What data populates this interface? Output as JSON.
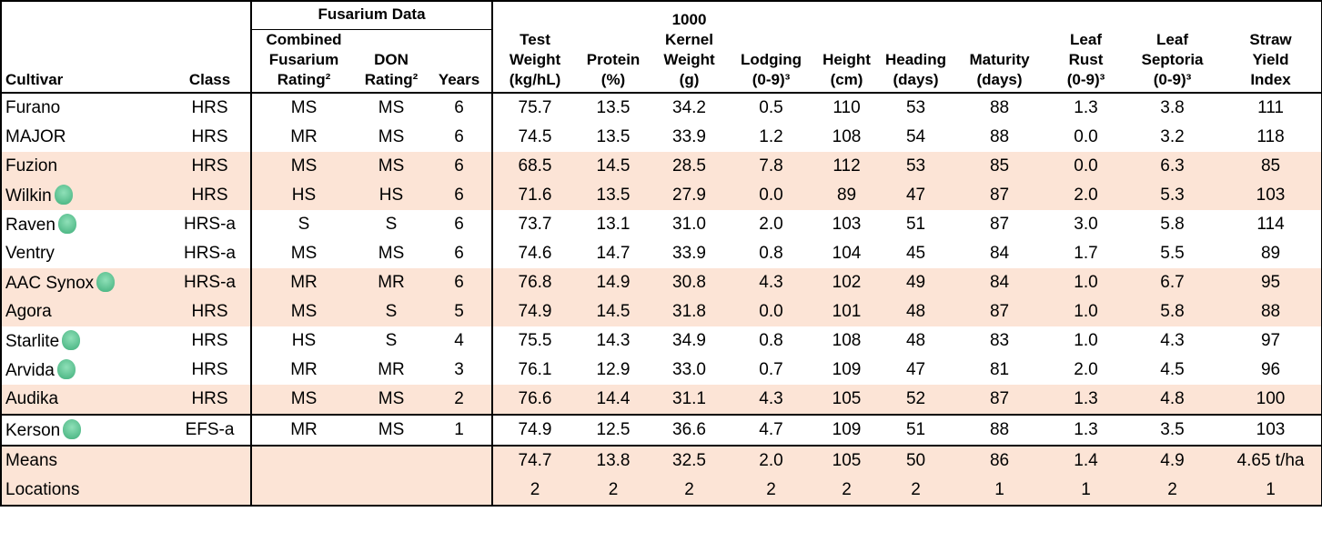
{
  "table": {
    "group": {
      "label": "Fusarium Data",
      "start": 2,
      "span": 3
    },
    "columns": [
      [
        "Cultivar"
      ],
      [
        "Class"
      ],
      [
        "Combined",
        "Fusarium",
        "Rating²"
      ],
      [
        "DON",
        "Rating²"
      ],
      [
        "Years"
      ],
      [
        "Test",
        "Weight",
        "(kg/hL)"
      ],
      [
        "Protein",
        "(%)"
      ],
      [
        "1000",
        "Kernel",
        "Weight",
        "(g)"
      ],
      [
        "Lodging",
        "(0-9)³"
      ],
      [
        "Height",
        "(cm)"
      ],
      [
        "Heading",
        "(days)"
      ],
      [
        "Maturity",
        "(days)"
      ],
      [
        "Leaf",
        "Rust",
        "(0-9)³"
      ],
      [
        "Leaf",
        "Septoria",
        "(0-9)³"
      ],
      [
        "Straw",
        "Yield",
        "Index"
      ]
    ],
    "rows": [
      {
        "cells": [
          "Furano",
          "HRS",
          "MS",
          "MS",
          "6",
          "75.7",
          "13.5",
          "34.2",
          "0.5",
          "110",
          "53",
          "88",
          "1.3",
          "3.8",
          "111"
        ]
      },
      {
        "cells": [
          "MAJOR",
          "HRS",
          "MR",
          "MS",
          "6",
          "74.5",
          "13.5",
          "33.9",
          "1.2",
          "108",
          "54",
          "88",
          "0.0",
          "3.2",
          "118"
        ]
      },
      {
        "cells": [
          "Fuzion",
          "HRS",
          "MS",
          "MS",
          "6",
          "68.5",
          "14.5",
          "28.5",
          "7.8",
          "112",
          "53",
          "85",
          "0.0",
          "6.3",
          "85"
        ],
        "shaded": true
      },
      {
        "cells": [
          "Wilkin",
          "HRS",
          "HS",
          "HS",
          "6",
          "71.6",
          "13.5",
          "27.9",
          "0.0",
          "89",
          "47",
          "87",
          "2.0",
          "5.3",
          "103"
        ],
        "shaded": true,
        "icon": true
      },
      {
        "cells": [
          "Raven",
          "HRS-a",
          "S",
          "S",
          "6",
          "73.7",
          "13.1",
          "31.0",
          "2.0",
          "103",
          "51",
          "87",
          "3.0",
          "5.8",
          "114"
        ],
        "icon": true
      },
      {
        "cells": [
          "Ventry",
          "HRS-a",
          "MS",
          "MS",
          "6",
          "74.6",
          "14.7",
          "33.9",
          "0.8",
          "104",
          "45",
          "84",
          "1.7",
          "5.5",
          "89"
        ]
      },
      {
        "cells": [
          "AAC Synox",
          "HRS-a",
          "MR",
          "MR",
          "6",
          "76.8",
          "14.9",
          "30.8",
          "4.3",
          "102",
          "49",
          "84",
          "1.0",
          "6.7",
          "95"
        ],
        "shaded": true,
        "icon": true
      },
      {
        "cells": [
          "Agora",
          "HRS",
          "MS",
          "S",
          "5",
          "74.9",
          "14.5",
          "31.8",
          "0.0",
          "101",
          "48",
          "87",
          "1.0",
          "5.8",
          "88"
        ],
        "shaded": true
      },
      {
        "cells": [
          "Starlite",
          "HRS",
          "HS",
          "S",
          "4",
          "75.5",
          "14.3",
          "34.9",
          "0.8",
          "108",
          "48",
          "83",
          "1.0",
          "4.3",
          "97"
        ],
        "icon": true
      },
      {
        "cells": [
          "Arvida",
          "HRS",
          "MR",
          "MR",
          "3",
          "76.1",
          "12.9",
          "33.0",
          "0.7",
          "109",
          "47",
          "81",
          "2.0",
          "4.5",
          "96"
        ],
        "icon": true
      },
      {
        "cells": [
          "Audika",
          "HRS",
          "MS",
          "MS",
          "2",
          "76.6",
          "14.4",
          "31.1",
          "4.3",
          "105",
          "52",
          "87",
          "1.3",
          "4.8",
          "100"
        ],
        "shaded": true
      },
      {
        "cells": [
          "Kerson",
          "EFS-a",
          "MR",
          "MS",
          "1",
          "74.9",
          "12.5",
          "36.6",
          "4.7",
          "109",
          "51",
          "88",
          "1.3",
          "3.5",
          "103"
        ],
        "icon": true,
        "boxed": true
      },
      {
        "cells": [
          "Means",
          null,
          null,
          null,
          null,
          "74.7",
          "13.8",
          "32.5",
          "2.0",
          "105",
          "50",
          "86",
          "1.4",
          "4.9",
          "4.65 t/ha"
        ],
        "shaded": true
      },
      {
        "cells": [
          "Locations",
          null,
          null,
          null,
          null,
          "2",
          "2",
          "2",
          "2",
          "2",
          "2",
          "1",
          "1",
          "2",
          "1"
        ],
        "shaded": true
      }
    ]
  }
}
